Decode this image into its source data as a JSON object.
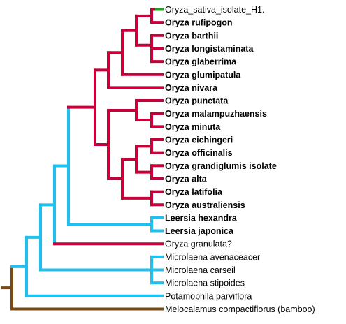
{
  "colors": {
    "oryza": "#c8003a",
    "outgroup": "#1ec0ee",
    "bamboo": "#7a4a12",
    "highlight": "#1aa31a"
  },
  "taxa": [
    {
      "label": "Oryza_sativa_isolate_H1.",
      "bold": false
    },
    {
      "label": "Oryza rufipogon",
      "bold": true
    },
    {
      "label": "Oryza barthii",
      "bold": true
    },
    {
      "label": "Oryza longistaminata",
      "bold": true
    },
    {
      "label": "Oryza glaberrima",
      "bold": true
    },
    {
      "label": "Oryza glumipatula",
      "bold": true
    },
    {
      "label": "Oryza nivara",
      "bold": true
    },
    {
      "label": "Oryza punctata",
      "bold": true
    },
    {
      "label": "Oryza malampuzhaensis",
      "bold": true
    },
    {
      "label": "Oryza minuta",
      "bold": true
    },
    {
      "label": "Oryza eichingeri",
      "bold": true
    },
    {
      "label": "Oryza officinalis",
      "bold": true
    },
    {
      "label": "Oryza grandiglumis isolate",
      "bold": true
    },
    {
      "label": "Oryza alta",
      "bold": true
    },
    {
      "label": "Oryza latifolia",
      "bold": true
    },
    {
      "label": "Oryza australiensis",
      "bold": true
    },
    {
      "label": "Leersia hexandra",
      "bold": true
    },
    {
      "label": "Leersia japonica",
      "bold": true
    },
    {
      "label": "Oryza granulata?",
      "bold": false
    },
    {
      "label": "Microlaena avenaceacer",
      "bold": false
    },
    {
      "label": "Microlaena carseil",
      "bold": false
    },
    {
      "label": "Microlaena stipoides",
      "bold": false
    },
    {
      "label": "Potamophila parviflora",
      "bold": false
    },
    {
      "label": "Melocalamus compactiflorus (bamboo)",
      "bold": false
    }
  ]
}
